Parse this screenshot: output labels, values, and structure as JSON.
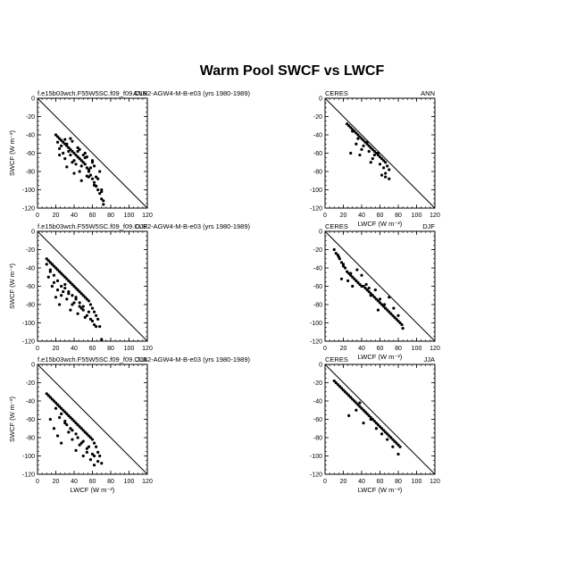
{
  "figure_title": "Warm Pool SWCF vs LWCF",
  "chart_data": [
    {
      "type": "scatter",
      "left_label": "f.e15b03wch.F55W5SC.f09_f09.CLB2-AGW4-M-B-e03 (yrs 1980-1989)",
      "right_label": "ANN",
      "xlabel": "",
      "ylabel": "SWCF (W m⁻²)",
      "xlim": [
        0,
        120
      ],
      "ylim": [
        -120,
        0
      ],
      "xticks": [
        0,
        20,
        40,
        60,
        80,
        100,
        120
      ],
      "yticks": [
        0,
        -20,
        -40,
        -60,
        -80,
        -100,
        -120
      ],
      "one_to_one_line": true,
      "x": [
        20,
        22,
        24,
        26,
        28,
        30,
        32,
        34,
        36,
        38,
        40,
        42,
        44,
        46,
        48,
        50,
        52,
        54,
        56,
        58,
        60,
        62,
        64,
        66,
        68,
        70,
        72,
        24,
        28,
        32,
        36,
        40,
        44,
        48,
        52,
        56,
        60,
        64,
        22,
        26,
        30,
        34,
        38,
        42,
        46,
        50,
        54,
        58,
        62,
        66,
        70,
        24,
        32,
        40,
        48,
        56,
        64,
        72,
        36,
        44,
        52,
        60,
        68,
        30,
        38,
        46,
        54,
        62,
        70
      ],
      "y": [
        -40,
        -42,
        -44,
        -46,
        -48,
        -50,
        -52,
        -54,
        -56,
        -58,
        -60,
        -62,
        -64,
        -66,
        -68,
        -70,
        -72,
        -76,
        -80,
        -84,
        -88,
        -92,
        -96,
        -100,
        -104,
        -110,
        -116,
        -55,
        -60,
        -50,
        -62,
        -68,
        -58,
        -74,
        -65,
        -78,
        -70,
        -86,
        -48,
        -52,
        -66,
        -58,
        -70,
        -72,
        -80,
        -62,
        -85,
        -76,
        -95,
        -88,
        -100,
        -62,
        -75,
        -82,
        -90,
        -86,
        -96,
        -112,
        -44,
        -54,
        -60,
        -68,
        -80,
        -45,
        -47,
        -56,
        -64,
        -74,
        -102
      ]
    },
    {
      "type": "scatter",
      "left_label": "CERES",
      "right_label": "ANN",
      "xlabel": "LWCF (W m⁻²)",
      "ylabel": "",
      "xlim": [
        0,
        120
      ],
      "ylim": [
        -120,
        0
      ],
      "xticks": [
        0,
        20,
        40,
        60,
        80,
        100,
        120
      ],
      "yticks": [
        0,
        -20,
        -40,
        -60,
        -80,
        -100,
        -120
      ],
      "one_to_one_line": true,
      "x": [
        24,
        26,
        28,
        30,
        32,
        34,
        36,
        38,
        40,
        42,
        44,
        46,
        48,
        50,
        52,
        54,
        56,
        58,
        60,
        62,
        64,
        66,
        68,
        70,
        30,
        36,
        42,
        48,
        54,
        60,
        66,
        28,
        34,
        40,
        46,
        52,
        58,
        64,
        70,
        38,
        50,
        62,
        66
      ],
      "y": [
        -28,
        -30,
        -32,
        -34,
        -36,
        -38,
        -40,
        -42,
        -44,
        -46,
        -48,
        -50,
        -52,
        -54,
        -56,
        -58,
        -60,
        -62,
        -64,
        -66,
        -68,
        -70,
        -74,
        -78,
        -36,
        -44,
        -52,
        -58,
        -62,
        -72,
        -82,
        -60,
        -50,
        -56,
        -48,
        -66,
        -60,
        -76,
        -88,
        -62,
        -70,
        -84,
        -86
      ]
    },
    {
      "type": "scatter",
      "left_label": "f.e15b03wch.F55W5SC.f09_f09.CLB2-AGW4-M-B-e03 (yrs 1980-1989)",
      "right_label": "DJF",
      "xlabel": "",
      "ylabel": "SWCF (W m⁻²)",
      "xlim": [
        0,
        120
      ],
      "ylim": [
        -120,
        0
      ],
      "xticks": [
        0,
        20,
        40,
        60,
        80,
        100,
        120
      ],
      "yticks": [
        0,
        -20,
        -40,
        -60,
        -80,
        -100,
        -120
      ],
      "one_to_one_line": true,
      "x": [
        10,
        12,
        14,
        16,
        18,
        20,
        22,
        24,
        26,
        28,
        30,
        32,
        34,
        36,
        38,
        40,
        42,
        44,
        46,
        48,
        50,
        52,
        54,
        56,
        58,
        60,
        62,
        64,
        66,
        68,
        70,
        12,
        16,
        20,
        24,
        28,
        32,
        36,
        40,
        44,
        48,
        52,
        56,
        60,
        64,
        14,
        18,
        22,
        26,
        30,
        34,
        38,
        42,
        46,
        50,
        54,
        58,
        62,
        10,
        14,
        18,
        22,
        26,
        30,
        34,
        38,
        42,
        46,
        50
      ],
      "y": [
        -30,
        -32,
        -34,
        -36,
        -38,
        -40,
        -42,
        -44,
        -46,
        -48,
        -50,
        -52,
        -54,
        -56,
        -58,
        -60,
        -62,
        -64,
        -66,
        -68,
        -70,
        -72,
        -74,
        -76,
        -80,
        -84,
        -88,
        -92,
        -96,
        -104,
        -118,
        -50,
        -60,
        -72,
        -80,
        -66,
        -74,
        -86,
        -78,
        -90,
        -84,
        -94,
        -88,
        -98,
        -104,
        -44,
        -56,
        -64,
        -70,
        -58,
        -68,
        -80,
        -72,
        -82,
        -86,
        -92,
        -96,
        -102,
        -36,
        -42,
        -48,
        -54,
        -60,
        -62,
        -66,
        -70,
        -74,
        -78,
        -82
      ]
    },
    {
      "type": "scatter",
      "left_label": "CERES",
      "right_label": "DJF",
      "xlabel": "LWCF (W m⁻²)",
      "ylabel": "",
      "xlim": [
        0,
        120
      ],
      "ylim": [
        -120,
        0
      ],
      "xticks": [
        0,
        20,
        40,
        60,
        80,
        100,
        120
      ],
      "yticks": [
        0,
        -20,
        -40,
        -60,
        -80,
        -100,
        -120
      ],
      "one_to_one_line": true,
      "x": [
        10,
        12,
        14,
        16,
        18,
        20,
        22,
        24,
        26,
        28,
        30,
        32,
        34,
        36,
        38,
        40,
        42,
        44,
        46,
        48,
        50,
        52,
        54,
        56,
        58,
        60,
        62,
        64,
        66,
        68,
        70,
        72,
        74,
        76,
        78,
        80,
        82,
        84,
        15,
        20,
        25,
        30,
        35,
        40,
        45,
        50,
        55,
        60,
        65,
        70,
        75,
        80,
        85,
        18,
        28,
        38,
        48,
        58
      ],
      "y": [
        -20,
        -24,
        -26,
        -30,
        -34,
        -38,
        -40,
        -44,
        -46,
        -48,
        -50,
        -52,
        -54,
        -56,
        -58,
        -60,
        -60,
        -62,
        -64,
        -66,
        -68,
        -70,
        -72,
        -74,
        -76,
        -78,
        -80,
        -82,
        -84,
        -86,
        -88,
        -90,
        -92,
        -94,
        -96,
        -98,
        -100,
        -102,
        -28,
        -36,
        -54,
        -60,
        -42,
        -48,
        -58,
        -70,
        -64,
        -74,
        -80,
        -72,
        -84,
        -92,
        -106,
        -52,
        -46,
        -58,
        -62,
        -86
      ]
    },
    {
      "type": "scatter",
      "left_label": "f.e15b03wch.F55W5SC.f09_f09.CLB2-AGW4-M-B-e03 (yrs 1980-1989)",
      "right_label": "JJA",
      "xlabel": "LWCF (W m⁻²)",
      "ylabel": "SWCF (W m⁻²)",
      "xlim": [
        0,
        120
      ],
      "ylim": [
        -120,
        0
      ],
      "xticks": [
        0,
        20,
        40,
        60,
        80,
        100,
        120
      ],
      "yticks": [
        0,
        -20,
        -40,
        -60,
        -80,
        -100,
        -120
      ],
      "one_to_one_line": true,
      "x": [
        10,
        12,
        14,
        16,
        18,
        20,
        22,
        24,
        26,
        28,
        30,
        32,
        34,
        36,
        38,
        40,
        42,
        44,
        46,
        48,
        50,
        52,
        54,
        56,
        58,
        60,
        62,
        64,
        66,
        68,
        70,
        14,
        18,
        22,
        26,
        30,
        34,
        38,
        42,
        46,
        50,
        54,
        58,
        62,
        66,
        20,
        26,
        32,
        38,
        44,
        50,
        56,
        62,
        24,
        30,
        36,
        42,
        48,
        54,
        60
      ],
      "y": [
        -32,
        -34,
        -36,
        -38,
        -40,
        -42,
        -44,
        -46,
        -48,
        -50,
        -52,
        -54,
        -56,
        -58,
        -60,
        -62,
        -64,
        -66,
        -68,
        -70,
        -72,
        -74,
        -76,
        -78,
        -80,
        -82,
        -86,
        -90,
        -96,
        -100,
        -108,
        -60,
        -70,
        -78,
        -86,
        -64,
        -74,
        -82,
        -94,
        -88,
        -100,
        -96,
        -104,
        -100,
        -106,
        -48,
        -54,
        -66,
        -72,
        -80,
        -84,
        -90,
        -110,
        -58,
        -62,
        -70,
        -76,
        -86,
        -92,
        -98
      ]
    },
    {
      "type": "scatter",
      "left_label": "CERES",
      "right_label": "JJA",
      "xlabel": "LWCF (W m⁻²)",
      "ylabel": "",
      "xlim": [
        0,
        120
      ],
      "ylim": [
        -120,
        0
      ],
      "xticks": [
        0,
        20,
        40,
        60,
        80,
        100,
        120
      ],
      "yticks": [
        0,
        -20,
        -40,
        -60,
        -80,
        -100,
        -120
      ],
      "one_to_one_line": true,
      "x": [
        10,
        12,
        14,
        16,
        18,
        20,
        22,
        24,
        26,
        28,
        30,
        32,
        34,
        36,
        38,
        40,
        42,
        44,
        46,
        48,
        50,
        52,
        54,
        56,
        58,
        60,
        62,
        64,
        66,
        68,
        70,
        72,
        74,
        76,
        78,
        80,
        82,
        38,
        44,
        50,
        56,
        62,
        68,
        74,
        80,
        26,
        34,
        42
      ],
      "y": [
        -18,
        -20,
        -22,
        -24,
        -26,
        -28,
        -30,
        -32,
        -34,
        -36,
        -38,
        -40,
        -42,
        -44,
        -46,
        -48,
        -50,
        -52,
        -54,
        -56,
        -58,
        -60,
        -62,
        -64,
        -66,
        -68,
        -70,
        -72,
        -74,
        -76,
        -78,
        -80,
        -82,
        -84,
        -86,
        -88,
        -90,
        -42,
        -52,
        -60,
        -70,
        -76,
        -82,
        -90,
        -98,
        -56,
        -50,
        -64
      ]
    }
  ]
}
